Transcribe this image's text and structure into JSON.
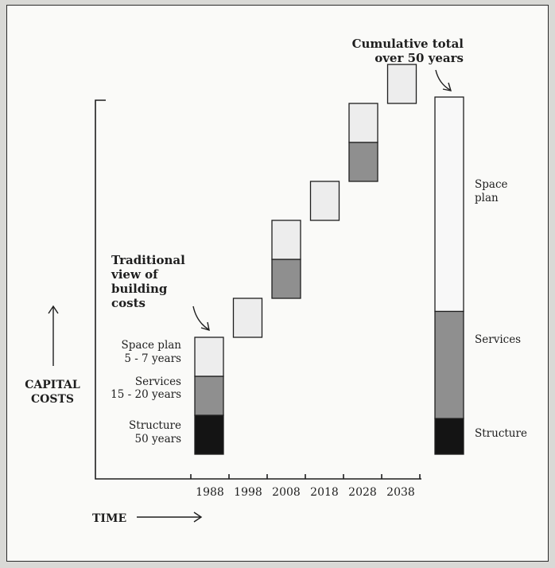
{
  "chart_data": {
    "type": "bar",
    "title": "",
    "xlabel": "TIME",
    "ylabel": "CAPITAL COSTS",
    "categories": [
      "1988",
      "1998",
      "2008",
      "2018",
      "2028",
      "2038"
    ],
    "series": [
      {
        "name": "Structure",
        "values": [
          1,
          0,
          0,
          0,
          0,
          0
        ]
      },
      {
        "name": "Services",
        "values": [
          1,
          0,
          1,
          0,
          1,
          0
        ]
      },
      {
        "name": "Space plan",
        "values": [
          1,
          1,
          1,
          1,
          1,
          1
        ]
      }
    ],
    "cumulative": {
      "structure": 1,
      "services": 3,
      "space_plan": 6
    },
    "colors": {
      "structure": "#141414",
      "services": "#8f8f8f",
      "space_plan": "#ededed",
      "cumulative_space_plan": "#f8f8f8",
      "outline": "#1e1e1e"
    },
    "annotations": {
      "cumulative": [
        "Cumulative total",
        "over 50 years"
      ],
      "traditional": [
        "Traditional",
        "view of",
        "building",
        "costs"
      ],
      "legend_left": {
        "space_plan": [
          "Space plan",
          "5 - 7 years"
        ],
        "services": [
          "Services",
          "15 - 20 years"
        ],
        "structure": [
          "Structure",
          "50 years"
        ]
      },
      "legend_right": {
        "space_plan": [
          "Space",
          "plan"
        ],
        "services": "Services",
        "structure": "Structure"
      },
      "ylabel_lines": [
        "CAPITAL",
        "COSTS"
      ]
    }
  }
}
